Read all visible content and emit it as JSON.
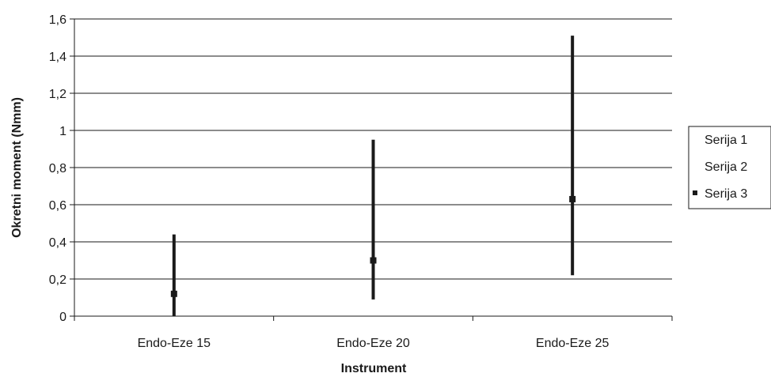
{
  "chart_data": {
    "type": "stock",
    "categories": [
      "Endo-Eze 15",
      "Endo-Eze 20",
      "Endo-Eze 25"
    ],
    "series": [
      {
        "name": "Serija 1",
        "values": [
          0.44,
          0.95,
          1.51
        ]
      },
      {
        "name": "Serija 2",
        "values": [
          0.0,
          0.09,
          0.22
        ]
      },
      {
        "name": "Serija 3",
        "values": [
          0.12,
          0.3,
          0.63
        ]
      }
    ],
    "xlabel": "Instrument",
    "ylabel": "Okretni moment (Nmm)",
    "ylim": [
      0,
      1.6
    ],
    "yticks": [
      0,
      0.2,
      0.4,
      0.6,
      0.8,
      1.0,
      1.2,
      1.4,
      1.6
    ],
    "ytick_labels": [
      "0",
      "0,2",
      "0,4",
      "0,6",
      "0,8",
      "1",
      "1,2",
      "1,4",
      "1,6"
    ],
    "grid": true,
    "legend_position": "right",
    "colors": {
      "line": "#1a1a1a",
      "grid": "#1a1a1a",
      "marker": "#1a1a1a"
    }
  }
}
